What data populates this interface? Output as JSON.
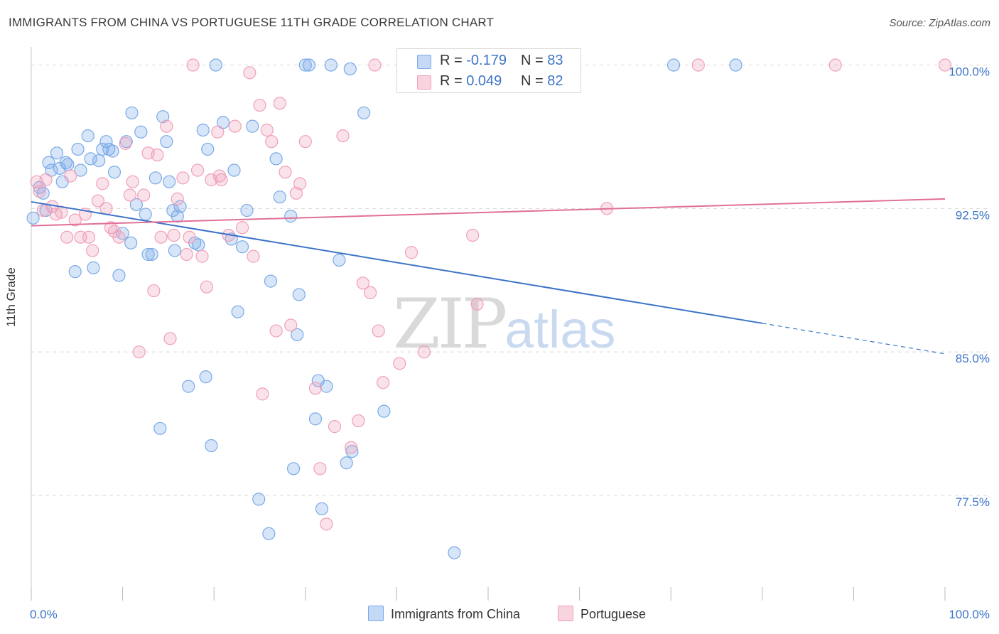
{
  "title": "IMMIGRANTS FROM CHINA VS PORTUGUESE 11TH GRADE CORRELATION CHART",
  "source": "Source: ZipAtlas.com",
  "watermark": {
    "part1": "ZIP",
    "part2": "atlas"
  },
  "colors": {
    "china": "#7aaae8",
    "china_fill": "rgba(122,170,232,0.30)",
    "china_line": "#3c74c8",
    "portuguese": "#f0a0b8",
    "portuguese_fill": "rgba(240,160,184,0.30)",
    "portuguese_line": "#e07098",
    "grid": "#d8d8d8",
    "axis_label": "#3c74c8"
  },
  "stats": [
    {
      "swatch": "china",
      "r_label": "R =",
      "r_value": "-0.179",
      "n_label": "N =",
      "n_value": "83"
    },
    {
      "swatch": "portuguese",
      "r_label": "R =",
      "r_value": "0.049",
      "n_label": "N =",
      "n_value": "82"
    }
  ],
  "legend": [
    {
      "key": "china",
      "label": "Immigrants from China"
    },
    {
      "key": "portuguese",
      "label": "Portuguese"
    }
  ],
  "chart_data": {
    "type": "scatter",
    "title": "IMMIGRANTS FROM CHINA VS PORTUGUESE 11TH GRADE CORRELATION CHART",
    "xlabel": "",
    "ylabel": "11th Grade",
    "xlim": [
      0,
      100
    ],
    "ylim": [
      72.0,
      100.8
    ],
    "x_tick_labels": [
      "0.0%",
      "100.0%"
    ],
    "y_ticks": [
      77.5,
      85.0,
      92.5,
      100.0
    ],
    "y_tick_labels": [
      "77.5%",
      "85.0%",
      "92.5%",
      "100.0%"
    ],
    "grid": true,
    "legend_position": "bottom",
    "series": [
      {
        "name": "Immigrants from China",
        "color": "#7aaae8",
        "trend": {
          "x": [
            0,
            80
          ],
          "y": [
            92.85,
            86.5
          ],
          "dashed_to": [
            100,
            84.9
          ]
        },
        "points": [
          [
            0.2,
            92.0
          ],
          [
            0.9,
            93.6
          ],
          [
            1.3,
            93.3
          ],
          [
            1.6,
            92.4
          ],
          [
            1.9,
            94.9
          ],
          [
            2.2,
            94.5
          ],
          [
            2.8,
            95.4
          ],
          [
            3.1,
            94.6
          ],
          [
            3.4,
            93.9
          ],
          [
            3.8,
            94.9
          ],
          [
            4.0,
            94.8
          ],
          [
            4.8,
            89.2
          ],
          [
            5.1,
            95.6
          ],
          [
            5.4,
            94.5
          ],
          [
            6.2,
            96.3
          ],
          [
            6.5,
            95.1
          ],
          [
            6.8,
            89.4
          ],
          [
            7.4,
            95.0
          ],
          [
            7.8,
            95.6
          ],
          [
            8.2,
            96.0
          ],
          [
            8.5,
            95.6
          ],
          [
            8.9,
            95.5
          ],
          [
            9.1,
            94.4
          ],
          [
            9.6,
            89.0
          ],
          [
            10.0,
            91.2
          ],
          [
            10.4,
            96.0
          ],
          [
            10.9,
            90.7
          ],
          [
            11.0,
            97.5
          ],
          [
            11.5,
            92.7
          ],
          [
            12.0,
            96.5
          ],
          [
            12.5,
            92.2
          ],
          [
            12.8,
            90.1
          ],
          [
            13.2,
            90.1
          ],
          [
            13.6,
            94.1
          ],
          [
            14.1,
            81.0
          ],
          [
            14.4,
            97.3
          ],
          [
            14.8,
            96.0
          ],
          [
            15.1,
            93.9
          ],
          [
            15.5,
            92.4
          ],
          [
            15.7,
            90.3
          ],
          [
            16.0,
            92.1
          ],
          [
            16.3,
            92.6
          ],
          [
            17.2,
            83.2
          ],
          [
            17.9,
            90.7
          ],
          [
            18.3,
            90.6
          ],
          [
            18.8,
            96.6
          ],
          [
            19.1,
            83.7
          ],
          [
            19.3,
            95.6
          ],
          [
            19.7,
            80.1
          ],
          [
            20.2,
            100.0
          ],
          [
            21.0,
            97.0
          ],
          [
            21.9,
            90.9
          ],
          [
            22.2,
            94.5
          ],
          [
            22.6,
            87.1
          ],
          [
            23.1,
            90.5
          ],
          [
            23.6,
            92.4
          ],
          [
            24.2,
            96.8
          ],
          [
            24.9,
            77.3
          ],
          [
            26.0,
            75.5
          ],
          [
            26.2,
            88.7
          ],
          [
            26.8,
            95.1
          ],
          [
            27.2,
            93.1
          ],
          [
            28.4,
            92.1
          ],
          [
            28.7,
            78.9
          ],
          [
            29.1,
            85.9
          ],
          [
            29.3,
            88.0
          ],
          [
            30.0,
            100.0
          ],
          [
            30.4,
            100.0
          ],
          [
            31.1,
            81.5
          ],
          [
            31.4,
            83.5
          ],
          [
            31.8,
            76.8
          ],
          [
            32.3,
            83.2
          ],
          [
            32.8,
            100.0
          ],
          [
            33.7,
            89.8
          ],
          [
            34.5,
            79.2
          ],
          [
            34.9,
            99.8
          ],
          [
            35.1,
            79.8
          ],
          [
            36.4,
            97.5
          ],
          [
            38.6,
            81.9
          ],
          [
            41.1,
            100.0
          ],
          [
            46.3,
            74.5
          ],
          [
            70.3,
            100.0
          ],
          [
            77.1,
            100.0
          ]
        ]
      },
      {
        "name": "Portuguese",
        "color": "#f0a0b8",
        "trend": {
          "x": [
            0,
            100
          ],
          "y": [
            91.6,
            93.0
          ]
        },
        "points": [
          [
            0.6,
            93.9
          ],
          [
            0.9,
            93.4
          ],
          [
            1.3,
            92.4
          ],
          [
            1.6,
            94.0
          ],
          [
            2.3,
            92.6
          ],
          [
            2.7,
            92.2
          ],
          [
            3.3,
            92.3
          ],
          [
            3.9,
            91.0
          ],
          [
            4.3,
            94.2
          ],
          [
            4.8,
            91.9
          ],
          [
            5.4,
            91.0
          ],
          [
            5.9,
            92.2
          ],
          [
            6.3,
            91.0
          ],
          [
            6.7,
            90.3
          ],
          [
            7.3,
            92.9
          ],
          [
            7.8,
            93.8
          ],
          [
            8.2,
            92.5
          ],
          [
            8.7,
            91.5
          ],
          [
            9.1,
            91.3
          ],
          [
            9.6,
            91.0
          ],
          [
            10.3,
            95.9
          ],
          [
            10.8,
            93.2
          ],
          [
            11.1,
            93.9
          ],
          [
            11.8,
            85.0
          ],
          [
            12.3,
            93.2
          ],
          [
            12.8,
            95.4
          ],
          [
            13.4,
            88.2
          ],
          [
            13.8,
            95.3
          ],
          [
            14.2,
            91.0
          ],
          [
            14.8,
            96.8
          ],
          [
            15.2,
            85.7
          ],
          [
            15.6,
            91.1
          ],
          [
            16.0,
            93.0
          ],
          [
            16.6,
            94.1
          ],
          [
            17.0,
            90.1
          ],
          [
            17.7,
            100.0
          ],
          [
            18.2,
            94.5
          ],
          [
            18.7,
            90.0
          ],
          [
            19.2,
            88.4
          ],
          [
            19.7,
            94.0
          ],
          [
            20.4,
            96.5
          ],
          [
            20.8,
            94.0
          ],
          [
            21.6,
            91.1
          ],
          [
            22.3,
            96.8
          ],
          [
            23.1,
            91.5
          ],
          [
            23.9,
            99.6
          ],
          [
            24.3,
            90.0
          ],
          [
            25.0,
            97.9
          ],
          [
            25.3,
            82.8
          ],
          [
            25.8,
            96.6
          ],
          [
            26.3,
            96.0
          ],
          [
            26.8,
            86.1
          ],
          [
            27.2,
            98.0
          ],
          [
            27.8,
            94.4
          ],
          [
            28.4,
            86.4
          ],
          [
            29.0,
            93.3
          ],
          [
            29.4,
            93.8
          ],
          [
            30.0,
            96.0
          ],
          [
            31.1,
            83.1
          ],
          [
            31.6,
            78.9
          ],
          [
            32.3,
            76.0
          ],
          [
            33.2,
            81.1
          ],
          [
            34.1,
            96.3
          ],
          [
            35.0,
            80.0
          ],
          [
            35.8,
            81.4
          ],
          [
            36.3,
            88.6
          ],
          [
            37.1,
            88.1
          ],
          [
            37.6,
            100.0
          ],
          [
            38.0,
            86.1
          ],
          [
            38.5,
            83.4
          ],
          [
            40.3,
            84.4
          ],
          [
            41.6,
            90.2
          ],
          [
            43.0,
            85.0
          ],
          [
            48.3,
            91.1
          ],
          [
            48.8,
            87.5
          ],
          [
            51.0,
            100.0
          ],
          [
            63.0,
            92.5
          ],
          [
            73.0,
            100.0
          ],
          [
            88.0,
            100.0
          ],
          [
            100.0,
            100.0
          ],
          [
            20.6,
            94.2
          ],
          [
            17.3,
            91.0
          ]
        ]
      }
    ]
  }
}
